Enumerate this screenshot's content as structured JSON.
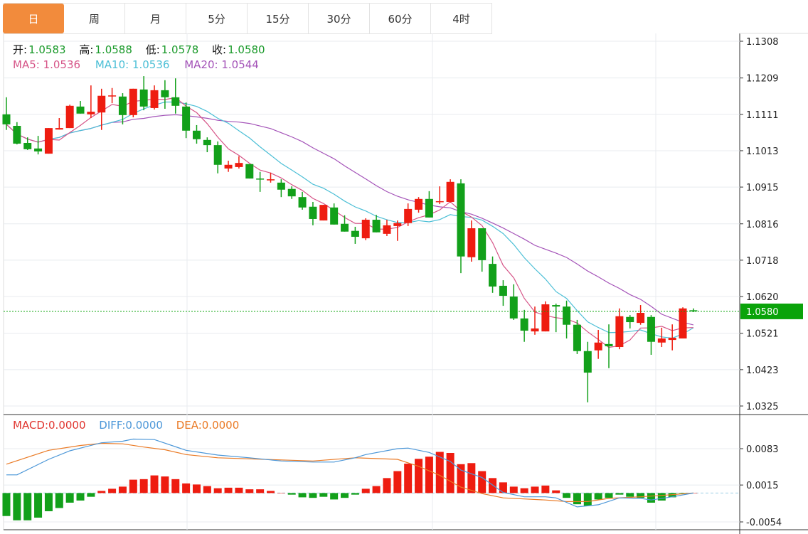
{
  "tabs": [
    {
      "label": "日",
      "active": true
    },
    {
      "label": "周"
    },
    {
      "label": "月"
    },
    {
      "label": "5分"
    },
    {
      "label": "15分"
    },
    {
      "label": "30分"
    },
    {
      "label": "60分"
    },
    {
      "label": "4时"
    }
  ],
  "ohlc_legend": {
    "open_label": "开:",
    "open": "1.0583",
    "high_label": "高:",
    "high": "1.0588",
    "low_label": "低:",
    "low": "1.0578",
    "close_label": "收:",
    "close": "1.0580"
  },
  "ma_legend": {
    "ma5": "MA5: 1.0536",
    "ma10": "MA10: 1.0536",
    "ma20": "MA20: 1.0544"
  },
  "macd_legend": {
    "macd": "MACD:0.0000",
    "diff": "DIFF:0.0000",
    "dea": "DEA:0.0000"
  },
  "colors": {
    "up": "#ee1c10",
    "down": "#12a01a",
    "ma5": "#d65588",
    "ma10": "#4cbfd6",
    "ma20": "#a453b8",
    "diff": "#4c97d8",
    "dea": "#ea7a25",
    "active_tab": "#f28b3c",
    "last_price_bg": "#0aa30a"
  },
  "chart_data": {
    "type": "candlestick",
    "price_axis": {
      "ticks": [
        "1.1308",
        "1.1209",
        "1.1111",
        "1.1013",
        "1.0915",
        "1.0816",
        "1.0718",
        "1.0620",
        "1.0521",
        "1.0423",
        "1.0325"
      ],
      "range": [
        1.0325,
        1.1308
      ],
      "position": "right",
      "grid": true
    },
    "last_price": "1.0580",
    "candles_ohlc": [
      [
        1.1111,
        1.1157,
        1.1069,
        1.1084
      ],
      [
        1.108,
        1.109,
        1.103,
        1.1032
      ],
      [
        1.1034,
        1.1049,
        1.1015,
        1.1017
      ],
      [
        1.1019,
        1.1053,
        1.1003,
        1.1011
      ],
      [
        1.1005,
        1.1074,
        1.1005,
        1.1074
      ],
      [
        1.107,
        1.1101,
        1.107,
        1.1074
      ],
      [
        1.1074,
        1.1137,
        1.1074,
        1.1134
      ],
      [
        1.1132,
        1.1147,
        1.1113,
        1.1113
      ],
      [
        1.1111,
        1.1189,
        1.1101,
        1.1118
      ],
      [
        1.1116,
        1.118,
        1.1069,
        1.1161
      ],
      [
        1.1161,
        1.1182,
        1.1141,
        1.1162
      ],
      [
        1.1159,
        1.1168,
        1.1084,
        1.1109
      ],
      [
        1.1109,
        1.118,
        1.1103,
        1.118
      ],
      [
        1.1178,
        1.1214,
        1.1122,
        1.1132
      ],
      [
        1.1128,
        1.1189,
        1.1124,
        1.1176
      ],
      [
        1.1176,
        1.1203,
        1.1126,
        1.1157
      ],
      [
        1.1157,
        1.1208,
        1.1113,
        1.1134
      ],
      [
        1.1132,
        1.1143,
        1.1047,
        1.1067
      ],
      [
        1.1067,
        1.1082,
        1.1032,
        1.1044
      ],
      [
        1.1042,
        1.1049,
        1.1009,
        1.1028
      ],
      [
        1.1028,
        1.1038,
        1.0952,
        1.0975
      ],
      [
        1.0965,
        1.0986,
        1.0956,
        1.0975
      ],
      [
        1.0969,
        1.0998,
        1.0965,
        1.098
      ],
      [
        1.0977,
        1.0977,
        1.0938,
        1.0938
      ],
      [
        1.0938,
        1.0956,
        1.0902,
        1.0936
      ],
      [
        1.0933,
        1.0954,
        1.0927,
        1.0936
      ],
      [
        1.0927,
        1.0936,
        1.0888,
        1.0908
      ],
      [
        1.091,
        1.0917,
        1.0883,
        1.089
      ],
      [
        1.0888,
        1.0902,
        1.0854,
        1.086
      ],
      [
        1.0862,
        1.0875,
        1.0812,
        1.0829
      ],
      [
        1.0825,
        1.0867,
        1.0825,
        1.0867
      ],
      [
        1.086,
        1.0871,
        1.0814,
        1.0814
      ],
      [
        1.0816,
        1.0839,
        1.0795,
        1.0795
      ],
      [
        1.0797,
        1.0808,
        1.0762,
        1.0781
      ],
      [
        1.0777,
        1.0831,
        1.0772,
        1.0827
      ],
      [
        1.0827,
        1.084,
        1.0793,
        1.0793
      ],
      [
        1.0789,
        1.0827,
        1.0783,
        1.0812
      ],
      [
        1.081,
        1.0825,
        1.077,
        1.0818
      ],
      [
        1.0818,
        1.0871,
        1.081,
        1.0856
      ],
      [
        1.0854,
        1.0888,
        1.0846,
        1.0883
      ],
      [
        1.0883,
        1.0904,
        1.0833,
        1.0833
      ],
      [
        1.0875,
        1.0917,
        1.0869,
        1.0877
      ],
      [
        1.0875,
        1.0936,
        1.0873,
        1.0929
      ],
      [
        1.0925,
        1.0936,
        1.0683,
        1.0728
      ],
      [
        1.0726,
        1.0825,
        1.0714,
        1.0804
      ],
      [
        1.0804,
        1.0804,
        1.0687,
        1.0718
      ],
      [
        1.0708,
        1.0728,
        1.063,
        1.0647
      ],
      [
        1.0649,
        1.0664,
        1.0595,
        1.0622
      ],
      [
        1.062,
        1.0653,
        1.0557,
        1.0561
      ],
      [
        1.0561,
        1.0584,
        1.0498,
        1.0528
      ],
      [
        1.0526,
        1.0593,
        1.0517,
        1.0534
      ],
      [
        1.0526,
        1.0607,
        1.0526,
        1.0599
      ],
      [
        1.0597,
        1.0601,
        1.0524,
        1.0593
      ],
      [
        1.0593,
        1.0609,
        1.0507,
        1.0544
      ],
      [
        1.0544,
        1.0557,
        1.0465,
        1.0473
      ],
      [
        1.0473,
        1.0498,
        1.0335,
        1.0415
      ],
      [
        1.0475,
        1.053,
        1.0452,
        1.0496
      ],
      [
        1.0492,
        1.0545,
        1.0427,
        1.0486
      ],
      [
        1.0484,
        1.0588,
        1.0478,
        1.0567
      ],
      [
        1.0565,
        1.057,
        1.0534,
        1.0551
      ],
      [
        1.0549,
        1.0597,
        1.0544,
        1.0576
      ],
      [
        1.0565,
        1.057,
        1.0463,
        1.0498
      ],
      [
        1.0496,
        1.0536,
        1.0484,
        1.0507
      ],
      [
        1.0503,
        1.0545,
        1.0475,
        1.0509
      ],
      [
        1.0507,
        1.0591,
        1.0507,
        1.0588
      ],
      [
        1.0583,
        1.0588,
        1.0578,
        1.058
      ]
    ],
    "moving_averages": [
      "MA5",
      "MA10",
      "MA20"
    ],
    "macd": {
      "axis_ticks": [
        "0.0083",
        "0.0015",
        "-0.0054"
      ],
      "range": [
        -0.0054,
        0.0083
      ],
      "histogram": [
        -0.0043,
        -0.0051,
        -0.0051,
        -0.0046,
        -0.0034,
        -0.0028,
        -0.0018,
        -0.0014,
        -0.0007,
        0.0004,
        0.0008,
        0.0012,
        0.0025,
        0.0026,
        0.0033,
        0.0031,
        0.0026,
        0.0018,
        0.0016,
        0.0013,
        0.0009,
        0.001,
        0.001,
        0.0007,
        0.0007,
        0.0004,
        0.0,
        -0.0003,
        -0.0008,
        -0.0009,
        -0.0007,
        -0.0012,
        -0.0009,
        -0.0003,
        0.0008,
        0.0013,
        0.0028,
        0.0041,
        0.0055,
        0.0064,
        0.0068,
        0.0077,
        0.0075,
        0.0054,
        0.0056,
        0.0041,
        0.0028,
        0.002,
        0.0012,
        0.0009,
        0.0012,
        0.0014,
        0.0005,
        -0.0009,
        -0.0021,
        -0.0024,
        -0.0012,
        -0.0009,
        -0.0003,
        -0.0007,
        -0.0009,
        -0.0018,
        -0.0014,
        -0.0008,
        -0.0001,
        0.0
      ],
      "diff": [
        [
          0,
          0.0034
        ],
        [
          1,
          0.0034
        ],
        [
          4,
          0.0063
        ],
        [
          6,
          0.0079
        ],
        [
          9,
          0.0094
        ],
        [
          11,
          0.0097
        ],
        [
          12,
          0.0101
        ],
        [
          14,
          0.01
        ],
        [
          17,
          0.008
        ],
        [
          20,
          0.0071
        ],
        [
          23,
          0.0066
        ],
        [
          26,
          0.006
        ],
        [
          29,
          0.0058
        ],
        [
          31,
          0.0058
        ],
        [
          33,
          0.0066
        ],
        [
          34,
          0.0072
        ],
        [
          37,
          0.0083
        ],
        [
          38,
          0.0084
        ],
        [
          40,
          0.0076
        ],
        [
          42,
          0.0059
        ],
        [
          43,
          0.0043
        ],
        [
          45,
          0.0029
        ],
        [
          47,
          0.0001
        ],
        [
          49,
          -0.0007
        ],
        [
          51,
          -0.0007
        ],
        [
          52,
          -0.0009
        ],
        [
          54,
          -0.0026
        ],
        [
          56,
          -0.0022
        ],
        [
          58,
          -0.0009
        ],
        [
          60,
          -0.001
        ],
        [
          61,
          -0.0013
        ],
        [
          63,
          -0.0007
        ],
        [
          65,
          0.0
        ]
      ],
      "dea": [
        [
          0,
          0.0054
        ],
        [
          4,
          0.008
        ],
        [
          7,
          0.0089
        ],
        [
          9,
          0.0093
        ],
        [
          11,
          0.0092
        ],
        [
          13,
          0.0086
        ],
        [
          15,
          0.0081
        ],
        [
          17,
          0.0072
        ],
        [
          20,
          0.0066
        ],
        [
          26,
          0.0062
        ],
        [
          29,
          0.006
        ],
        [
          33,
          0.0066
        ],
        [
          37,
          0.0063
        ],
        [
          39,
          0.005
        ],
        [
          41,
          0.0033
        ],
        [
          43,
          0.0011
        ],
        [
          45,
          -0.0001
        ],
        [
          47,
          -0.0009
        ],
        [
          51,
          -0.0013
        ],
        [
          53,
          -0.0016
        ],
        [
          55,
          -0.0016
        ],
        [
          57,
          -0.001
        ],
        [
          60,
          -0.0007
        ],
        [
          63,
          -0.0003
        ],
        [
          65,
          0.0
        ]
      ]
    }
  }
}
